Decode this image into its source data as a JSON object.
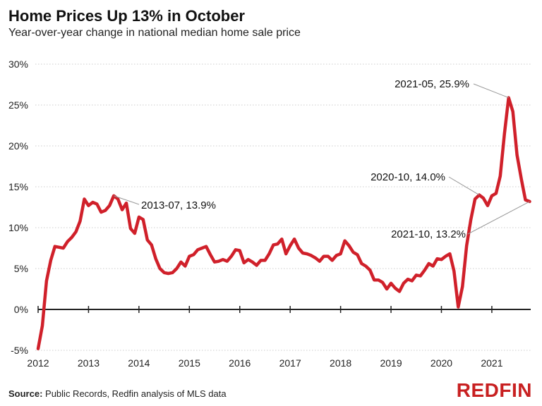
{
  "title": "Home Prices Up 13% in October",
  "subtitle": "Year-over-year change in national median home sale price",
  "source_label": "Source:",
  "source_text": "Public Records, Redfin analysis of MLS data",
  "logo": "REDFIN",
  "colors": {
    "line": "#d0202a",
    "grid": "#cccccc",
    "axis": "#222222",
    "logo": "#c82021"
  },
  "chart_data": {
    "type": "line",
    "title": "Home Prices Up 13% in October",
    "subtitle": "Year-over-year change in national median home sale price",
    "xlabel": "",
    "ylabel": "",
    "ylim": [
      -5,
      30
    ],
    "yticks": [
      -5,
      0,
      5,
      10,
      15,
      20,
      25,
      30
    ],
    "ytick_labels": [
      "-5%",
      "0%",
      "5%",
      "10%",
      "15%",
      "20%",
      "25%",
      "30%"
    ],
    "xticks": [
      "2012",
      "2013",
      "2014",
      "2015",
      "2016",
      "2017",
      "2018",
      "2019",
      "2020",
      "2021"
    ],
    "grid": "horizontal dotted",
    "start": "2012-01",
    "frequency": "monthly",
    "values": [
      -4.8,
      -2.0,
      3.5,
      6.0,
      7.7,
      7.6,
      7.5,
      8.3,
      8.8,
      9.5,
      10.8,
      13.5,
      12.7,
      13.1,
      12.9,
      11.9,
      12.1,
      12.7,
      13.9,
      13.5,
      12.2,
      13.0,
      9.9,
      9.3,
      11.3,
      11.0,
      8.5,
      7.9,
      6.2,
      5.0,
      4.5,
      4.4,
      4.5,
      5.0,
      5.8,
      5.3,
      6.5,
      6.7,
      7.3,
      7.5,
      7.7,
      6.7,
      5.8,
      5.9,
      6.1,
      5.9,
      6.5,
      7.3,
      7.2,
      5.7,
      6.1,
      5.8,
      5.4,
      6.0,
      6.0,
      6.8,
      7.9,
      8.0,
      8.6,
      6.8,
      7.8,
      8.6,
      7.5,
      6.9,
      6.8,
      6.6,
      6.3,
      5.9,
      6.5,
      6.5,
      6.0,
      6.6,
      6.8,
      8.4,
      7.8,
      7.0,
      6.7,
      5.6,
      5.3,
      4.8,
      3.6,
      3.6,
      3.3,
      2.5,
      3.2,
      2.6,
      2.2,
      3.2,
      3.7,
      3.5,
      4.2,
      4.1,
      4.8,
      5.6,
      5.3,
      6.2,
      6.1,
      6.5,
      6.8,
      4.7,
      0.3,
      2.8,
      7.8,
      11.0,
      13.5,
      14.0,
      13.6,
      12.7,
      13.9,
      14.2,
      16.3,
      21.5,
      25.9,
      24.2,
      18.9,
      16.0,
      13.4,
      13.2
    ],
    "annotations": [
      {
        "date": "2013-07",
        "value": 13.9,
        "label": "2013-07, 13.9%"
      },
      {
        "date": "2021-05",
        "value": 25.9,
        "label": "2021-05, 25.9%"
      },
      {
        "date": "2020-10",
        "value": 14.0,
        "label": "2020-10, 14.0%"
      },
      {
        "date": "2021-10",
        "value": 13.2,
        "label": "2021-10, 13.2%"
      }
    ]
  }
}
